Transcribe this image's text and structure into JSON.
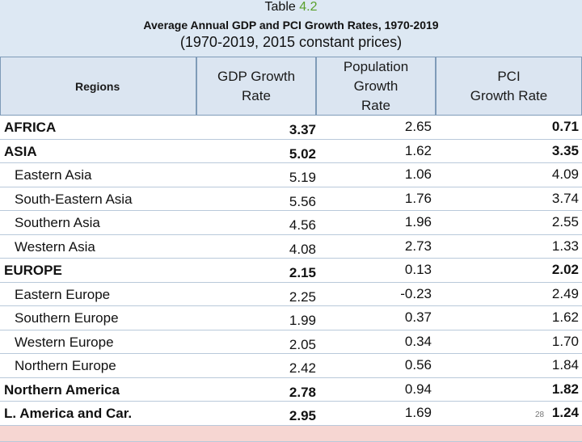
{
  "title": {
    "prefix": "Table ",
    "number": "4.2",
    "subtitle": "Average Annual GDP and PCI Growth Rates, 1970-2019",
    "note": "(1970-2019, 2015 constant prices)"
  },
  "headers": {
    "regions": "Regions",
    "gdp": "GDP Growth Rate",
    "population": "Population Growth Rate",
    "pci": "PCI Growth Rate"
  },
  "rows": [
    {
      "region": "AFRICA",
      "gdp": "3.37",
      "pop": "2.65",
      "pci": "0.71",
      "level": "main"
    },
    {
      "region": "ASIA",
      "gdp": "5.02",
      "pop": "1.62",
      "pci": "3.35",
      "level": "main"
    },
    {
      "region": "Eastern Asia",
      "gdp": "5.19",
      "pop": "1.06",
      "pci": "4.09",
      "level": "sub"
    },
    {
      "region": "South-Eastern Asia",
      "gdp": "5.56",
      "pop": "1.76",
      "pci": "3.74",
      "level": "sub"
    },
    {
      "region": "Southern Asia",
      "gdp": "4.56",
      "pop": "1.96",
      "pci": "2.55",
      "level": "sub"
    },
    {
      "region": "Western Asia",
      "gdp": "4.08",
      "pop": "2.73",
      "pci": "1.33",
      "level": "sub"
    },
    {
      "region": "EUROPE",
      "gdp": "2.15",
      "pop": "0.13",
      "pci": "2.02",
      "level": "main"
    },
    {
      "region": "Eastern Europe",
      "gdp": "2.25",
      "pop": "-0.23",
      "pci": "2.49",
      "level": "sub"
    },
    {
      "region": "Southern Europe",
      "gdp": "1.99",
      "pop": "0.37",
      "pci": "1.62",
      "level": "sub"
    },
    {
      "region": "Western Europe",
      "gdp": "2.05",
      "pop": "0.34",
      "pci": "1.70",
      "level": "sub"
    },
    {
      "region": "Northern Europe",
      "gdp": "2.42",
      "pop": "0.56",
      "pci": "1.84",
      "level": "sub"
    },
    {
      "region": "Northern America",
      "gdp": "2.78",
      "pop": "0.94",
      "pci": "1.82",
      "level": "main"
    },
    {
      "region": "L. America and Car.",
      "gdp": "2.95",
      "pop": "1.69",
      "pci": "1.24",
      "level": "main"
    }
  ],
  "page_number": "28",
  "colors": {
    "accent": "#5aa02c",
    "header_bg": "#dbe5f1",
    "world_row": "#f6d6d2"
  }
}
